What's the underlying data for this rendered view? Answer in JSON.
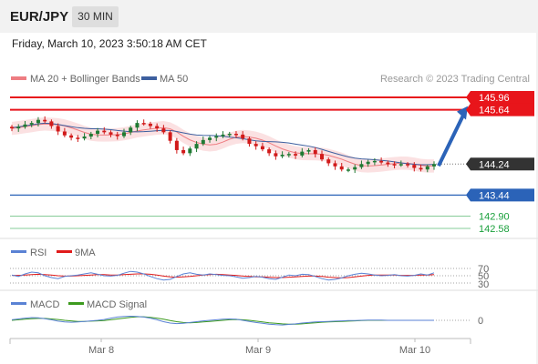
{
  "header": {
    "symbol": "EUR/JPY",
    "timeframe": "30 MIN"
  },
  "datetime": "Friday, March 10, 2023 3:50:18 AM CET",
  "legend": {
    "ma20_bb": "MA 20 + Bollinger Bands",
    "ma50": "MA 50",
    "credit": "Research © 2023 Trading Central"
  },
  "colors": {
    "resistance": "#e8151b",
    "support": "#2b63b8",
    "target_green": "#1aa03c",
    "current": "#333333",
    "candle_up": "#1f7a33",
    "candle_down": "#d11a1a",
    "bollinger": "#f7c9cb",
    "ma20": "#ee7d82",
    "ma50": "#3d5f9f",
    "arrow": "#2b63b8",
    "rsi": "#5a82d4",
    "rsi_ma": "#e01b1b",
    "macd": "#5a82d4",
    "macd_signal": "#3c9a1e"
  },
  "chart_data": {
    "type": "candlestick",
    "instrument": "EUR/JPY",
    "interval": "30 MIN",
    "price_levels": [
      {
        "value": "145.96",
        "kind": "resistance"
      },
      {
        "value": "145.64",
        "kind": "resistance"
      },
      {
        "value": "144.24",
        "kind": "current"
      },
      {
        "value": "143.44",
        "kind": "support"
      },
      {
        "value": "142.90",
        "kind": "target"
      },
      {
        "value": "142.58",
        "kind": "target"
      }
    ],
    "x_tick_labels": [
      "Mar 8",
      "Mar 9",
      "Mar 10"
    ],
    "close_series": [
      145.16,
      145.2,
      145.26,
      145.3,
      145.38,
      145.34,
      145.22,
      145.08,
      144.98,
      144.92,
      144.9,
      144.95,
      145.02,
      145.1,
      145.06,
      145.0,
      144.96,
      145.06,
      145.18,
      145.3,
      145.28,
      145.22,
      145.16,
      145.06,
      144.84,
      144.6,
      144.52,
      144.64,
      144.76,
      144.86,
      144.92,
      144.96,
      145.0,
      145.02,
      145.0,
      144.9,
      144.76,
      144.7,
      144.62,
      144.52,
      144.44,
      144.48,
      144.5,
      144.46,
      144.56,
      144.6,
      144.5,
      144.36,
      144.26,
      144.18,
      144.1,
      144.1,
      144.16,
      144.24,
      144.3,
      144.32,
      144.28,
      144.24,
      144.22,
      144.24,
      144.22,
      144.14,
      144.1,
      144.18,
      144.24
    ],
    "final_close": 144.24,
    "projection": {
      "from": 144.24,
      "to": 145.64,
      "direction": "up"
    },
    "rsi": {
      "name": "RSI",
      "ma_name": "9MA",
      "levels": [
        "70",
        "50",
        "30"
      ],
      "values": [
        52,
        48,
        55,
        60,
        58,
        50,
        45,
        42,
        48,
        50,
        52,
        55,
        58,
        54,
        50,
        49,
        51,
        57,
        62,
        60,
        55,
        48,
        42,
        38,
        40,
        48,
        55,
        58,
        54,
        52,
        55,
        53,
        51,
        50,
        47,
        43,
        45,
        48,
        46,
        42,
        40,
        46,
        52,
        50,
        54,
        53,
        48,
        42,
        38,
        40,
        44,
        50,
        54,
        57,
        55,
        52,
        50,
        51,
        53,
        50,
        49,
        51,
        55,
        52,
        58
      ],
      "ma_values": [
        51,
        51,
        52,
        53,
        54,
        53,
        52,
        50,
        49,
        49,
        50,
        51,
        52,
        53,
        53,
        52,
        52,
        53,
        54,
        55,
        55,
        54,
        52,
        49,
        47,
        46,
        47,
        48,
        50,
        52,
        53,
        54,
        53,
        52,
        51,
        49,
        48,
        47,
        47,
        46,
        45,
        45,
        46,
        47,
        48,
        49,
        49,
        48,
        46,
        45,
        44,
        45,
        47,
        49,
        51,
        52,
        52,
        52,
        52,
        51,
        51,
        51,
        52,
        52,
        53
      ]
    },
    "macd": {
      "name": "MACD",
      "signal_name": "MACD Signal",
      "zero_label": "0",
      "values": [
        0.02,
        0.05,
        0.08,
        0.1,
        0.09,
        0.06,
        0.02,
        -0.03,
        -0.06,
        -0.07,
        -0.06,
        -0.04,
        -0.02,
        0.0,
        0.03,
        0.08,
        0.12,
        0.14,
        0.15,
        0.14,
        0.12,
        0.08,
        0.02,
        -0.05,
        -0.1,
        -0.12,
        -0.11,
        -0.08,
        -0.05,
        -0.02,
        0.0,
        0.02,
        0.04,
        0.05,
        0.04,
        0.0,
        -0.04,
        -0.08,
        -0.11,
        -0.14,
        -0.16,
        -0.17,
        -0.15,
        -0.13,
        -0.1,
        -0.08,
        -0.06,
        -0.05,
        -0.04,
        -0.03,
        -0.02,
        -0.01,
        -0.01,
        0.0,
        0.01,
        0.01,
        0.01,
        0.0,
        0.0,
        0.0,
        0.0,
        0.0,
        0.0,
        0.0,
        0.0
      ],
      "signal": [
        0.0,
        0.02,
        0.04,
        0.06,
        0.07,
        0.07,
        0.05,
        0.03,
        0.0,
        -0.02,
        -0.04,
        -0.04,
        -0.03,
        -0.02,
        -0.01,
        0.02,
        0.05,
        0.08,
        0.11,
        0.13,
        0.13,
        0.11,
        0.08,
        0.04,
        -0.01,
        -0.05,
        -0.08,
        -0.09,
        -0.08,
        -0.06,
        -0.04,
        -0.02,
        0.0,
        0.02,
        0.03,
        0.02,
        0.0,
        -0.03,
        -0.06,
        -0.09,
        -0.11,
        -0.13,
        -0.14,
        -0.14,
        -0.13,
        -0.11,
        -0.09,
        -0.07,
        -0.06,
        -0.05,
        -0.04,
        -0.03,
        -0.02,
        -0.01,
        0.0,
        0.0,
        0.0,
        0.0,
        0.0,
        0.0,
        0.0,
        0.0,
        0.0,
        0.0,
        0.0
      ]
    }
  }
}
